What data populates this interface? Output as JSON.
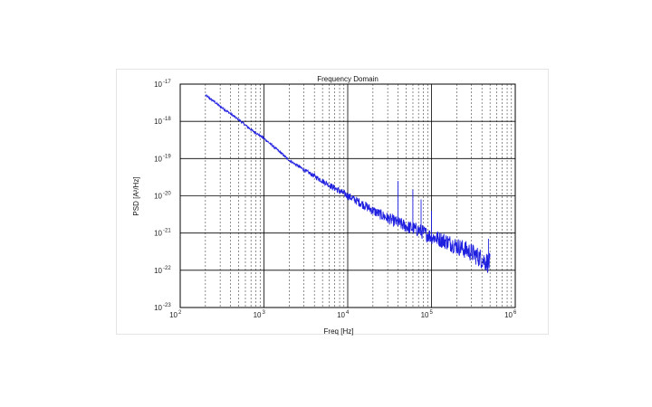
{
  "chart_data": {
    "type": "line",
    "title": "Frequency Domain",
    "xlabel": "Freq [Hz]",
    "ylabel": "PSD [A²/Hz]",
    "xscale": "log",
    "yscale": "log",
    "xlim": [
      100,
      1000000
    ],
    "ylim": [
      1e-23,
      1e-17
    ],
    "grid": true,
    "x_tick_labels": [
      "10 2",
      "10 3",
      "10 4",
      "10 5",
      "10 6"
    ],
    "y_tick_labels": [
      "10 -17",
      "10 -18",
      "10 -19",
      "10 -20",
      "10 -21",
      "10 -22",
      "10 -23"
    ],
    "line_color": "#1f1fe0",
    "series": [
      {
        "x": [
          200,
          250,
          300,
          400,
          500,
          700,
          1000,
          1500,
          2000,
          3000,
          5000,
          7000,
          10000,
          15000,
          20000,
          30000,
          50000,
          70000,
          100000,
          150000,
          200000,
          300000,
          400000,
          500000
        ],
        "y": [
          5e-18,
          3.5e-18,
          2.5e-18,
          1.6e-18,
          1.1e-18,
          6e-19,
          3.5e-19,
          1.6e-19,
          9e-20,
          5e-20,
          2.5e-20,
          1.6e-20,
          1e-20,
          6e-21,
          4e-21,
          2.5e-21,
          1.5e-21,
          1.2e-21,
          8e-22,
          6e-22,
          4.5e-22,
          3e-22,
          2e-22,
          1.5e-22
        ]
      }
    ],
    "spikes": [
      {
        "x": 40000,
        "y": 2.5e-20
      },
      {
        "x": 60000,
        "y": 1.5e-20
      },
      {
        "x": 75000,
        "y": 8e-21
      },
      {
        "x": 100000,
        "y": 4e-21
      },
      {
        "x": 480000,
        "y": 7e-22
      }
    ]
  }
}
